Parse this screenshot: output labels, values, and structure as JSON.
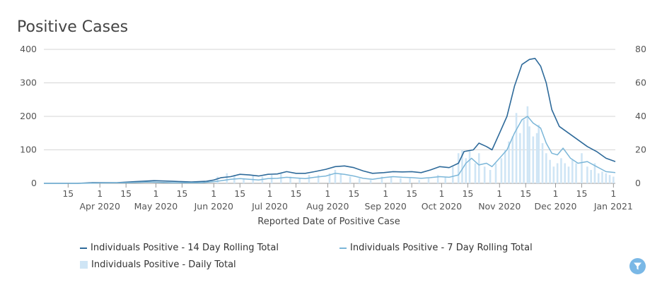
{
  "colors": {
    "line14": "#2e6a9a",
    "line7": "#7bb6d8",
    "bars": "#cfe5f5",
    "grid": "#d6d6d6",
    "filter": "#7ab8e6"
  },
  "chart_data": {
    "type": "line",
    "title": "Positive Cases",
    "xlabel": "Reported Date of Positive Case",
    "date_range": [
      "2020-03-02",
      "2021-01-02"
    ],
    "ylim_left": [
      0,
      400
    ],
    "ylim_right": [
      0,
      80
    ],
    "y_ticks_left": [
      "0",
      "100",
      "200",
      "300",
      "400"
    ],
    "y_ticks_right": [
      "0",
      "20",
      "40",
      "60",
      "80"
    ],
    "x_ticks": [
      {
        "date": "2020-03-15",
        "day": "15",
        "month": ""
      },
      {
        "date": "2020-04-01",
        "day": "1",
        "month": "Apr 2020"
      },
      {
        "date": "2020-04-15",
        "day": "15",
        "month": ""
      },
      {
        "date": "2020-05-01",
        "day": "1",
        "month": "May 2020"
      },
      {
        "date": "2020-05-15",
        "day": "15",
        "month": ""
      },
      {
        "date": "2020-06-01",
        "day": "1",
        "month": "Jun 2020"
      },
      {
        "date": "2020-06-15",
        "day": "15",
        "month": ""
      },
      {
        "date": "2020-07-01",
        "day": "1",
        "month": "Jul 2020"
      },
      {
        "date": "2020-07-15",
        "day": "15",
        "month": ""
      },
      {
        "date": "2020-08-01",
        "day": "1",
        "month": "Aug 2020"
      },
      {
        "date": "2020-08-15",
        "day": "15",
        "month": ""
      },
      {
        "date": "2020-09-01",
        "day": "1",
        "month": "Sep 2020"
      },
      {
        "date": "2020-09-15",
        "day": "15",
        "month": ""
      },
      {
        "date": "2020-10-01",
        "day": "1",
        "month": "Oct 2020"
      },
      {
        "date": "2020-10-15",
        "day": "15",
        "month": ""
      },
      {
        "date": "2020-11-01",
        "day": "1",
        "month": "Nov 2020"
      },
      {
        "date": "2020-11-15",
        "day": "15",
        "month": ""
      },
      {
        "date": "2020-12-01",
        "day": "1",
        "month": "Dec 2020"
      },
      {
        "date": "2020-12-15",
        "day": "15",
        "month": ""
      },
      {
        "date": "2021-01-01",
        "day": "1",
        "month": "Jan 2021"
      }
    ],
    "legend_placement": "bottom",
    "series": [
      {
        "name": "Individuals Positive - 14 Day Rolling Total",
        "axis": "left",
        "points": [
          [
            "2020-03-02",
            0
          ],
          [
            "2020-03-20",
            0
          ],
          [
            "2020-03-28",
            2
          ],
          [
            "2020-04-10",
            2
          ],
          [
            "2020-04-20",
            5
          ],
          [
            "2020-04-30",
            8
          ],
          [
            "2020-05-10",
            6
          ],
          [
            "2020-05-20",
            4
          ],
          [
            "2020-05-28",
            6
          ],
          [
            "2020-06-01",
            10
          ],
          [
            "2020-06-05",
            17
          ],
          [
            "2020-06-10",
            20
          ],
          [
            "2020-06-15",
            27
          ],
          [
            "2020-06-20",
            25
          ],
          [
            "2020-06-25",
            22
          ],
          [
            "2020-06-30",
            27
          ],
          [
            "2020-07-05",
            28
          ],
          [
            "2020-07-10",
            35
          ],
          [
            "2020-07-15",
            30
          ],
          [
            "2020-07-20",
            30
          ],
          [
            "2020-07-25",
            35
          ],
          [
            "2020-07-31",
            42
          ],
          [
            "2020-08-05",
            50
          ],
          [
            "2020-08-10",
            52
          ],
          [
            "2020-08-15",
            47
          ],
          [
            "2020-08-20",
            37
          ],
          [
            "2020-08-25",
            30
          ],
          [
            "2020-08-31",
            32
          ],
          [
            "2020-09-05",
            35
          ],
          [
            "2020-09-10",
            34
          ],
          [
            "2020-09-15",
            35
          ],
          [
            "2020-09-20",
            32
          ],
          [
            "2020-09-25",
            40
          ],
          [
            "2020-09-30",
            50
          ],
          [
            "2020-10-05",
            47
          ],
          [
            "2020-10-10",
            60
          ],
          [
            "2020-10-13",
            95
          ],
          [
            "2020-10-18",
            100
          ],
          [
            "2020-10-21",
            120
          ],
          [
            "2020-10-25",
            110
          ],
          [
            "2020-10-28",
            100
          ],
          [
            "2020-11-01",
            150
          ],
          [
            "2020-11-05",
            200
          ],
          [
            "2020-11-09",
            290
          ],
          [
            "2020-11-13",
            355
          ],
          [
            "2020-11-17",
            370
          ],
          [
            "2020-11-20",
            373
          ],
          [
            "2020-11-23",
            350
          ],
          [
            "2020-11-26",
            300
          ],
          [
            "2020-11-29",
            220
          ],
          [
            "2020-12-03",
            170
          ],
          [
            "2020-12-08",
            150
          ],
          [
            "2020-12-13",
            130
          ],
          [
            "2020-12-18",
            110
          ],
          [
            "2020-12-23",
            95
          ],
          [
            "2020-12-28",
            75
          ],
          [
            "2021-01-02",
            65
          ]
        ]
      },
      {
        "name": "Individuals Positive - 7 Day Rolling Total",
        "axis": "left",
        "points": [
          [
            "2020-03-02",
            0
          ],
          [
            "2020-03-20",
            0
          ],
          [
            "2020-04-01",
            1
          ],
          [
            "2020-04-15",
            2
          ],
          [
            "2020-04-27",
            4
          ],
          [
            "2020-05-10",
            2
          ],
          [
            "2020-05-25",
            2
          ],
          [
            "2020-06-01",
            5
          ],
          [
            "2020-06-05",
            8
          ],
          [
            "2020-06-10",
            12
          ],
          [
            "2020-06-15",
            14
          ],
          [
            "2020-06-20",
            12
          ],
          [
            "2020-06-25",
            10
          ],
          [
            "2020-06-30",
            14
          ],
          [
            "2020-07-05",
            15
          ],
          [
            "2020-07-10",
            18
          ],
          [
            "2020-07-15",
            16
          ],
          [
            "2020-07-20",
            14
          ],
          [
            "2020-07-25",
            18
          ],
          [
            "2020-07-31",
            22
          ],
          [
            "2020-08-05",
            30
          ],
          [
            "2020-08-10",
            27
          ],
          [
            "2020-08-15",
            22
          ],
          [
            "2020-08-20",
            15
          ],
          [
            "2020-08-25",
            12
          ],
          [
            "2020-08-31",
            17
          ],
          [
            "2020-09-05",
            20
          ],
          [
            "2020-09-10",
            18
          ],
          [
            "2020-09-15",
            17
          ],
          [
            "2020-09-20",
            15
          ],
          [
            "2020-09-25",
            17
          ],
          [
            "2020-09-30",
            20
          ],
          [
            "2020-10-05",
            18
          ],
          [
            "2020-10-10",
            25
          ],
          [
            "2020-10-14",
            60
          ],
          [
            "2020-10-17",
            75
          ],
          [
            "2020-10-21",
            55
          ],
          [
            "2020-10-25",
            60
          ],
          [
            "2020-10-28",
            50
          ],
          [
            "2020-11-01",
            75
          ],
          [
            "2020-11-05",
            100
          ],
          [
            "2020-11-09",
            150
          ],
          [
            "2020-11-13",
            190
          ],
          [
            "2020-11-16",
            200
          ],
          [
            "2020-11-19",
            180
          ],
          [
            "2020-11-23",
            165
          ],
          [
            "2020-11-26",
            120
          ],
          [
            "2020-11-29",
            90
          ],
          [
            "2020-12-02",
            85
          ],
          [
            "2020-12-05",
            105
          ],
          [
            "2020-12-09",
            75
          ],
          [
            "2020-12-13",
            60
          ],
          [
            "2020-12-18",
            65
          ],
          [
            "2020-12-23",
            50
          ],
          [
            "2020-12-28",
            35
          ],
          [
            "2021-01-02",
            32
          ]
        ]
      },
      {
        "name": "Individuals Positive - Daily Total",
        "axis": "right",
        "type": "bar",
        "points": [
          [
            "2020-06-03",
            4
          ],
          [
            "2020-06-08",
            6
          ],
          [
            "2020-06-12",
            5
          ],
          [
            "2020-06-17",
            3
          ],
          [
            "2020-06-22",
            5
          ],
          [
            "2020-06-27",
            4
          ],
          [
            "2020-07-02",
            5
          ],
          [
            "2020-07-07",
            6
          ],
          [
            "2020-07-12",
            4
          ],
          [
            "2020-07-17",
            3
          ],
          [
            "2020-07-22",
            5
          ],
          [
            "2020-07-27",
            5
          ],
          [
            "2020-08-02",
            6
          ],
          [
            "2020-08-05",
            8
          ],
          [
            "2020-08-08",
            6
          ],
          [
            "2020-08-13",
            4
          ],
          [
            "2020-08-18",
            3
          ],
          [
            "2020-08-24",
            2
          ],
          [
            "2020-08-30",
            4
          ],
          [
            "2020-09-04",
            4
          ],
          [
            "2020-09-09",
            3
          ],
          [
            "2020-09-14",
            3
          ],
          [
            "2020-09-19",
            2
          ],
          [
            "2020-09-24",
            3
          ],
          [
            "2020-09-29",
            5
          ],
          [
            "2020-10-03",
            4
          ],
          [
            "2020-10-07",
            10
          ],
          [
            "2020-10-10",
            18
          ],
          [
            "2020-10-12",
            20
          ],
          [
            "2020-10-14",
            15
          ],
          [
            "2020-10-16",
            20
          ],
          [
            "2020-10-19",
            12
          ],
          [
            "2020-10-21",
            18
          ],
          [
            "2020-10-24",
            10
          ],
          [
            "2020-10-27",
            8
          ],
          [
            "2020-10-30",
            12
          ],
          [
            "2020-11-02",
            15
          ],
          [
            "2020-11-04",
            20
          ],
          [
            "2020-11-06",
            25
          ],
          [
            "2020-11-08",
            28
          ],
          [
            "2020-11-10",
            42
          ],
          [
            "2020-11-12",
            30
          ],
          [
            "2020-11-14",
            38
          ],
          [
            "2020-11-16",
            46
          ],
          [
            "2020-11-17",
            34
          ],
          [
            "2020-11-19",
            28
          ],
          [
            "2020-11-21",
            30
          ],
          [
            "2020-11-22",
            35
          ],
          [
            "2020-11-24",
            24
          ],
          [
            "2020-11-26",
            18
          ],
          [
            "2020-11-28",
            14
          ],
          [
            "2020-11-30",
            10
          ],
          [
            "2020-12-02",
            12
          ],
          [
            "2020-12-04",
            15
          ],
          [
            "2020-12-06",
            12
          ],
          [
            "2020-12-08",
            10
          ],
          [
            "2020-12-10",
            14
          ],
          [
            "2020-12-12",
            12
          ],
          [
            "2020-12-15",
            18
          ],
          [
            "2020-12-18",
            10
          ],
          [
            "2020-12-20",
            8
          ],
          [
            "2020-12-22",
            12
          ],
          [
            "2020-12-24",
            6
          ],
          [
            "2020-12-26",
            7
          ],
          [
            "2020-12-28",
            6
          ],
          [
            "2020-12-30",
            5
          ],
          [
            "2021-01-01",
            4
          ]
        ]
      }
    ]
  },
  "legend": {
    "item14": "Individuals Positive - 14 Day Rolling Total",
    "item7": "Individuals Positive - 7 Day Rolling Total",
    "itemDaily": "Individuals Positive - Daily Total"
  },
  "filter_icon": "filter-icon"
}
